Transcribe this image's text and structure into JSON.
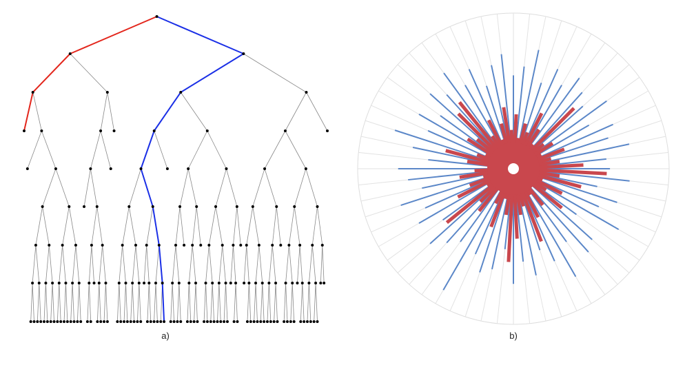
{
  "captions": {
    "a": "a)",
    "b": "b)"
  },
  "radial": {
    "blue": [
      0.62,
      0.75,
      0.55,
      0.7,
      0.6,
      0.78,
      0.5,
      0.68,
      0.72,
      0.58,
      0.8,
      0.65,
      0.55,
      0.7,
      0.6,
      0.74,
      0.52,
      0.66,
      0.7,
      0.6,
      0.9,
      0.58,
      0.64,
      0.72,
      0.56,
      0.7,
      0.62,
      0.76,
      0.6,
      0.68,
      0.74,
      0.55,
      0.66,
      0.8,
      0.6,
      0.7,
      0.58,
      0.72,
      0.64,
      0.76,
      0.62,
      0.7,
      0.56,
      0.68,
      0.74,
      0.6,
      0.66,
      0.78,
      0.58,
      0.7,
      0.62,
      0.72,
      0.66,
      0.6,
      0.74,
      0.56,
      0.7,
      0.64,
      0.76,
      0.6
    ],
    "red": [
      0.6,
      0.3,
      0.45,
      0.2,
      0.35,
      0.25,
      0.4,
      0.15,
      0.3,
      0.2,
      0.35,
      0.5,
      0.25,
      0.3,
      0.45,
      0.6,
      0.3,
      0.2,
      0.4,
      0.25,
      0.15,
      0.35,
      0.3,
      0.55,
      0.2,
      0.4,
      0.3,
      0.2,
      0.35,
      0.25,
      0.15,
      0.3,
      0.45,
      0.25,
      0.2,
      0.35,
      0.3,
      0.5,
      0.55,
      0.25,
      0.35,
      0.2,
      0.3,
      0.4,
      0.25,
      0.35,
      0.2,
      0.3,
      0.25,
      0.4,
      0.3,
      0.2,
      0.55,
      0.25,
      0.3,
      0.2,
      0.35,
      0.25,
      0.3,
      0.45
    ]
  }
}
